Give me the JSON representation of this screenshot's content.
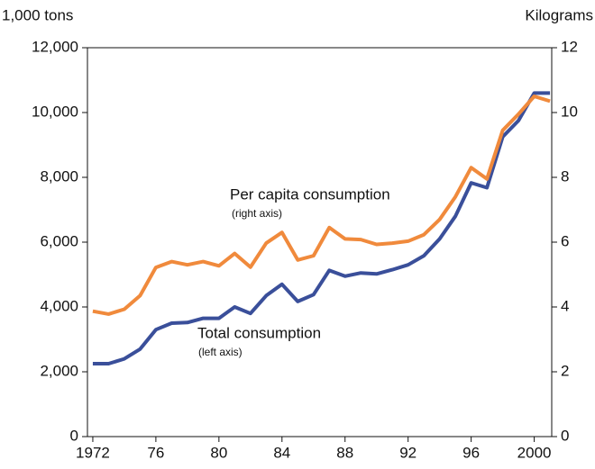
{
  "chart_data": {
    "type": "line",
    "y_label": "1,000 tons",
    "y2_label": "Kilograms",
    "annotations": [
      {
        "text": "Per capita consumption",
        "note": "(right axis)"
      },
      {
        "text": "Total consumption",
        "note": "(left axis)"
      }
    ],
    "x": [
      1972,
      1973,
      1974,
      1975,
      1976,
      1977,
      1978,
      1979,
      1980,
      1981,
      1982,
      1983,
      1984,
      1985,
      1986,
      1987,
      1988,
      1989,
      1990,
      1991,
      1992,
      1993,
      1994,
      1995,
      1996,
      1997,
      1998,
      1999,
      2000,
      2001
    ],
    "series": [
      {
        "name": "Total consumption",
        "color": "#3a4f9a",
        "axis": "y",
        "values": [
          2250,
          2250,
          2400,
          2700,
          3300,
          3500,
          3520,
          3650,
          3650,
          4000,
          3800,
          4350,
          4700,
          4170,
          4380,
          5130,
          4950,
          5050,
          5020,
          5150,
          5300,
          5580,
          6100,
          6800,
          7830,
          7680,
          9250,
          9750,
          10600,
          10600
        ]
      },
      {
        "name": "Per capita consumption",
        "color": "#f08a3c",
        "axis": "y2",
        "values": [
          3.87,
          3.78,
          3.93,
          4.35,
          5.22,
          5.4,
          5.3,
          5.4,
          5.27,
          5.65,
          5.23,
          5.97,
          6.3,
          5.45,
          5.58,
          6.45,
          6.1,
          6.08,
          5.93,
          5.97,
          6.03,
          6.23,
          6.7,
          7.4,
          8.3,
          7.95,
          9.45,
          9.95,
          10.5,
          10.35
        ]
      }
    ],
    "xlim": [
      1971.66,
      2001.11
    ],
    "xticks": [
      1972,
      {
        "value": 1976,
        "label": "76"
      },
      {
        "value": 1980,
        "label": "80"
      },
      {
        "value": 1984,
        "label": "84"
      },
      {
        "value": 1988,
        "label": "88"
      },
      {
        "value": 1992,
        "label": "92"
      },
      {
        "value": 1996,
        "label": "96"
      },
      2000
    ],
    "ylim": [
      0,
      12000
    ],
    "yticks": [
      0,
      {
        "value": 2000,
        "label": "2,000"
      },
      {
        "value": 4000,
        "label": "4,000"
      },
      {
        "value": 6000,
        "label": "6,000"
      },
      {
        "value": 8000,
        "label": "8,000"
      },
      {
        "value": 10000,
        "label": "10,000"
      },
      {
        "value": 12000,
        "label": "12,000"
      }
    ],
    "y2lim": [
      0,
      12
    ],
    "y2ticks": [
      0,
      2,
      4,
      6,
      8,
      10,
      12
    ]
  }
}
